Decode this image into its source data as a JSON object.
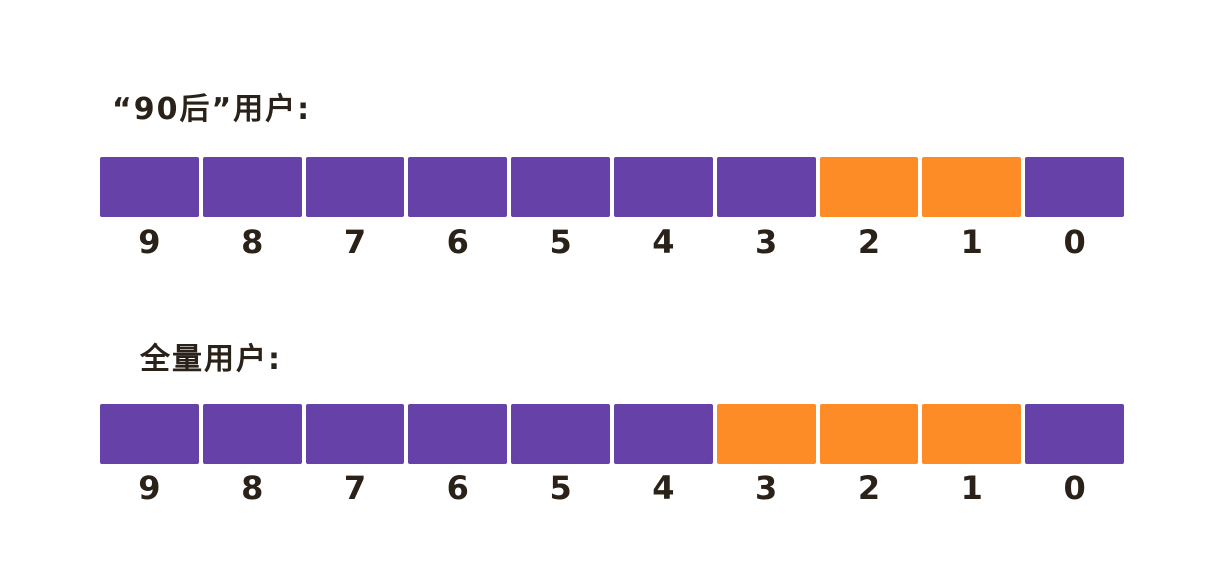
{
  "colors": {
    "off": "#6541a8",
    "on": "#fe8c26"
  },
  "diagram": {
    "groups": [
      {
        "title": "“90后”用户:",
        "bits": [
          {
            "label": "9",
            "set": false
          },
          {
            "label": "8",
            "set": false
          },
          {
            "label": "7",
            "set": false
          },
          {
            "label": "6",
            "set": false
          },
          {
            "label": "5",
            "set": false
          },
          {
            "label": "4",
            "set": false
          },
          {
            "label": "3",
            "set": false
          },
          {
            "label": "2",
            "set": true
          },
          {
            "label": "1",
            "set": true
          },
          {
            "label": "0",
            "set": false
          }
        ]
      },
      {
        "title": "全量用户:",
        "bits": [
          {
            "label": "9",
            "set": false
          },
          {
            "label": "8",
            "set": false
          },
          {
            "label": "7",
            "set": false
          },
          {
            "label": "6",
            "set": false
          },
          {
            "label": "5",
            "set": false
          },
          {
            "label": "4",
            "set": false
          },
          {
            "label": "3",
            "set": true
          },
          {
            "label": "2",
            "set": true
          },
          {
            "label": "1",
            "set": true
          },
          {
            "label": "0",
            "set": false
          }
        ]
      }
    ]
  }
}
